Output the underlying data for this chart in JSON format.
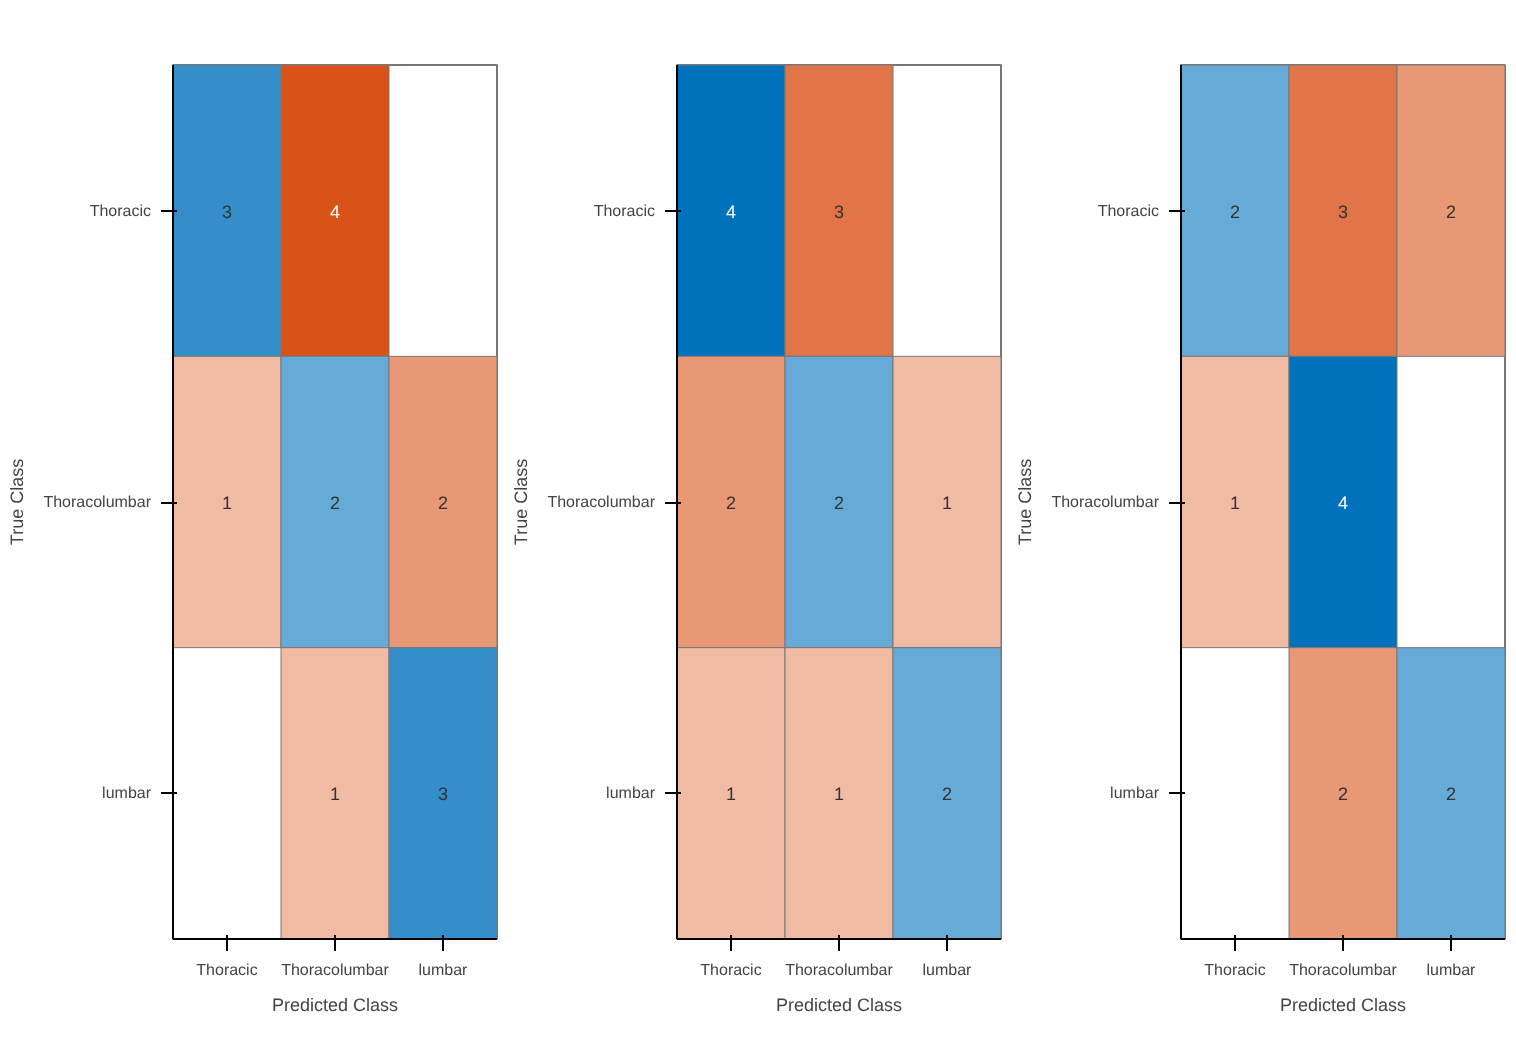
{
  "chart_data": [
    {
      "type": "heatmap",
      "xlabel": "Predicted Class",
      "ylabel": "True Class",
      "categories": [
        "Thoracic",
        "Thoracolumbar",
        "lumbar"
      ],
      "y_categories": [
        "Thoracic",
        "Thoracolumbar",
        "lumbar"
      ],
      "cells": [
        [
          3,
          4,
          null
        ],
        [
          1,
          2,
          2
        ],
        [
          null,
          1,
          3
        ]
      ],
      "data_labels": true,
      "grid": false
    },
    {
      "type": "heatmap",
      "xlabel": "Predicted Class",
      "ylabel": "True Class",
      "categories": [
        "Thoracic",
        "Thoracolumbar",
        "lumbar"
      ],
      "y_categories": [
        "Thoracic",
        "Thoracolumbar",
        "lumbar"
      ],
      "cells": [
        [
          4,
          3,
          null
        ],
        [
          2,
          2,
          1
        ],
        [
          1,
          1,
          2
        ]
      ],
      "data_labels": true,
      "grid": false
    },
    {
      "type": "heatmap",
      "xlabel": "Predicted Class",
      "ylabel": "True Class",
      "categories": [
        "Thoracic",
        "Thoracolumbar",
        "lumbar"
      ],
      "y_categories": [
        "Thoracic",
        "Thoracolumbar",
        "lumbar"
      ],
      "cells": [
        [
          2,
          3,
          2
        ],
        [
          1,
          4,
          null
        ],
        [
          null,
          2,
          2
        ]
      ],
      "data_labels": true,
      "grid": false
    }
  ]
}
